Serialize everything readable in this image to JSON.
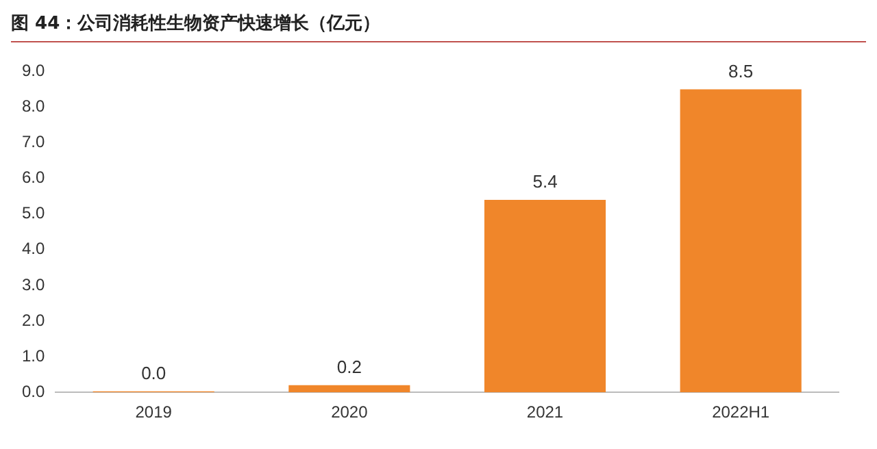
{
  "chart_data": {
    "type": "bar",
    "title": "图 44：公司消耗性生物资产快速增长（亿元）",
    "categories": [
      "2019",
      "2020",
      "2021",
      "2022H1"
    ],
    "values": [
      0.03,
      0.2,
      5.4,
      8.5
    ],
    "value_labels": [
      "0.0",
      "0.2",
      "5.4",
      "8.5"
    ],
    "color": "#f0862a",
    "ylim": [
      0,
      9
    ],
    "yticks": [
      {
        "value": 0,
        "label": "0.0"
      },
      {
        "value": 1,
        "label": "1.0"
      },
      {
        "value": 2,
        "label": "2.0"
      },
      {
        "value": 3,
        "label": "3.0"
      },
      {
        "value": 4,
        "label": "4.0"
      },
      {
        "value": 5,
        "label": "5.0"
      },
      {
        "value": 6,
        "label": "6.0"
      },
      {
        "value": 7,
        "label": "7.0"
      },
      {
        "value": 8,
        "label": "8.0"
      },
      {
        "value": 9,
        "label": "9.0"
      }
    ],
    "grid": false,
    "legend": false
  }
}
